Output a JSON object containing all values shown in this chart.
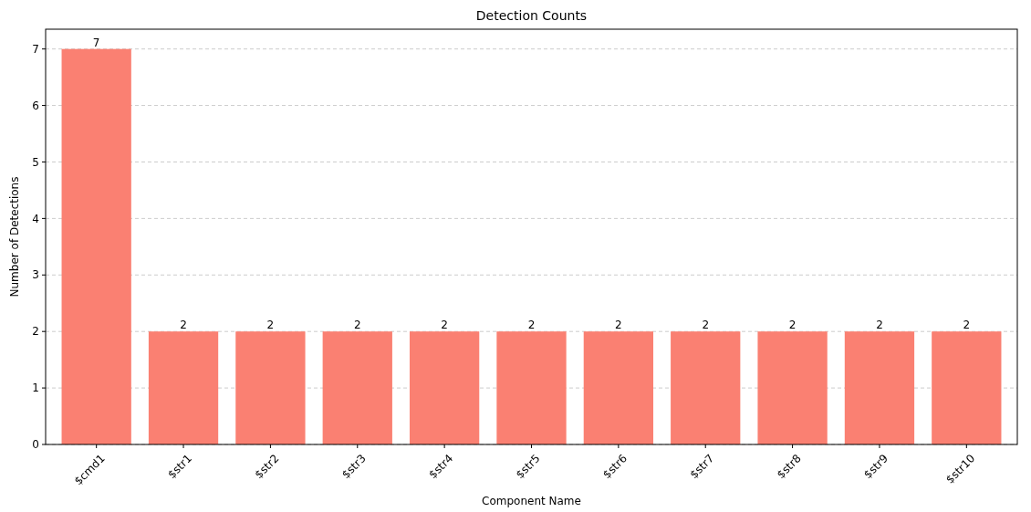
{
  "chart_data": {
    "type": "bar",
    "title": "Detection Counts",
    "xlabel": "Component Name",
    "ylabel": "Number of Detections",
    "categories": [
      "$cmd1",
      "$str1",
      "$str2",
      "$str3",
      "$str4",
      "$str5",
      "$str6",
      "$str7",
      "$str8",
      "$str9",
      "$str10"
    ],
    "values": [
      7,
      2,
      2,
      2,
      2,
      2,
      2,
      2,
      2,
      2,
      2
    ],
    "color": "#fa8072",
    "ylim": [
      0,
      7.35
    ],
    "yticks": [
      0,
      1,
      2,
      3,
      4,
      5,
      6,
      7
    ],
    "grid": "y",
    "data_labels": true
  }
}
